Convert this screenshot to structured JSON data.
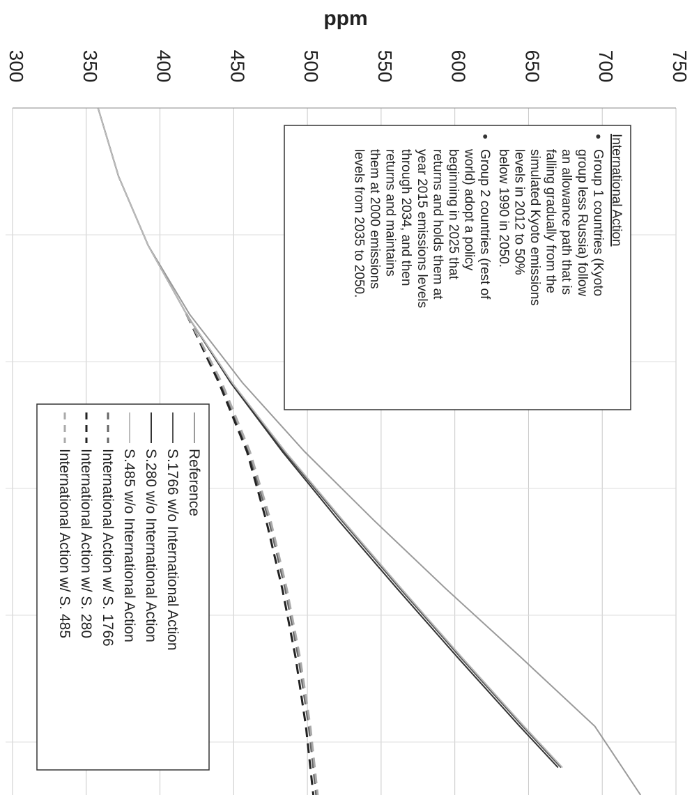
{
  "chart_data": {
    "type": "line",
    "orientation": "rotated-90-clockwise",
    "ylabel": "ppm",
    "ylim": [
      300,
      750
    ],
    "yticks": [
      "300",
      "350",
      "400",
      "450",
      "500",
      "550",
      "600",
      "650",
      "700",
      "750"
    ],
    "x_range": [
      0,
      1
    ],
    "grid": true,
    "legend": {
      "placement": "bottom-left",
      "entries": [
        "Reference",
        "S.1766 w/o International Action",
        "S.280 w/o International Action",
        "S.485 w/o International Action",
        "International Action w/ S. 1766",
        "International Action w/ S. 280",
        "International Action w/ S. 485"
      ]
    },
    "annotation": {
      "title": "International Action",
      "bullets": [
        [
          "Group 1 countries (Kyoto",
          "group less Russia) follow",
          "an allowance path that is",
          "falling gradually from the",
          "simulated Kyoto emissions",
          "levels in 2012 to 50%",
          "below 1990 in 2050."
        ],
        [
          "Group 2 countries (rest of",
          "world) adopt a policy",
          "beginning in 2025 that",
          "returns and holds them at",
          "year 2015 emissions levels",
          "through 2034, and then",
          "returns and maintains",
          "them at 2000 emissions",
          "levels from 2035 to 2050."
        ]
      ]
    },
    "series": [
      {
        "name": "Reference",
        "color": "#9a9a9a",
        "style": "solid",
        "x": [
          0,
          0.1,
          0.2,
          0.3,
          0.4,
          0.5,
          0.6,
          0.7,
          0.8,
          0.9,
          1.0
        ],
        "y": [
          358,
          372,
          392,
          420,
          456,
          498,
          545,
          594,
          645,
          695,
          726
        ]
      },
      {
        "name": "S.1766 w/o International Action",
        "color": "#555555",
        "style": "solid",
        "x": [
          0,
          0.1,
          0.2,
          0.3,
          0.4,
          0.5,
          0.6,
          0.7,
          0.8,
          0.9,
          0.96
        ],
        "y": [
          358,
          372,
          392,
          418,
          449,
          484,
          523,
          563,
          604,
          646,
          672
        ]
      },
      {
        "name": "S.280 w/o International Action",
        "color": "#333333",
        "style": "solid",
        "x": [
          0,
          0.1,
          0.2,
          0.3,
          0.4,
          0.5,
          0.6,
          0.7,
          0.8,
          0.9,
          0.96
        ],
        "y": [
          358,
          372,
          392,
          418,
          448,
          483,
          521,
          561,
          602,
          644,
          670
        ]
      },
      {
        "name": "S.485 w/o International Action",
        "color": "#bbbbbb",
        "style": "solid",
        "x": [
          0,
          0.1,
          0.2,
          0.3,
          0.4,
          0.5,
          0.6,
          0.7,
          0.8,
          0.9,
          0.96
        ],
        "y": [
          358,
          372,
          392,
          418,
          449,
          485,
          524,
          564,
          605,
          647,
          673
        ]
      },
      {
        "name": "International Action w/ S. 1766",
        "color": "#666666",
        "style": "dashed",
        "x": [
          0.3,
          0.4,
          0.5,
          0.6,
          0.7,
          0.8,
          0.9,
          1.0
        ],
        "y": [
          418,
          441,
          460,
          474,
          485,
          494,
          501,
          506
        ]
      },
      {
        "name": "International Action w/ S. 280",
        "color": "#222222",
        "style": "dashed",
        "x": [
          0.3,
          0.4,
          0.5,
          0.6,
          0.7,
          0.8,
          0.9,
          1.0
        ],
        "y": [
          418,
          440,
          459,
          472,
          483,
          492,
          499,
          504
        ]
      },
      {
        "name": "International Action w/ S. 485",
        "color": "#aaaaaa",
        "style": "dashed",
        "x": [
          0.3,
          0.4,
          0.5,
          0.6,
          0.7,
          0.8,
          0.9,
          1.0
        ],
        "y": [
          418,
          442,
          461,
          475,
          486,
          495,
          502,
          507
        ]
      }
    ]
  }
}
